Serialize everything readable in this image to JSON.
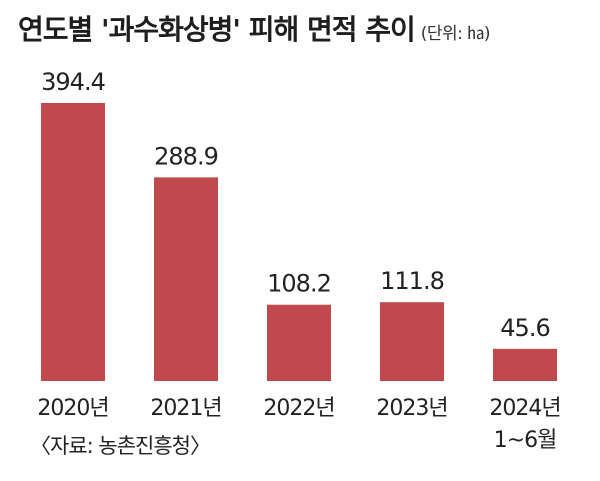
{
  "header": {
    "title": "연도별 '과수화상병' 피해 면적 추이",
    "unit": "(단위: ㏊)"
  },
  "source": "〈자료: 농촌진흥청〉",
  "colors": {
    "bar": "#c0494d",
    "text": "#222222"
  },
  "chart_data": {
    "type": "bar",
    "title": "연도별 '과수화상병' 피해 면적 추이",
    "unit": "㏊",
    "categories": [
      "2020년",
      "2021년",
      "2022년",
      "2023년",
      "2024년"
    ],
    "category_sublabels": [
      "",
      "",
      "",
      "",
      "1~6월"
    ],
    "values": [
      394.4,
      288.9,
      108.2,
      111.8,
      45.6
    ],
    "value_labels": [
      "394.4",
      "288.9",
      "108.2",
      "111.8",
      "45.6"
    ],
    "ylim": [
      0,
      394.4
    ],
    "grid": false,
    "legend": "none"
  }
}
